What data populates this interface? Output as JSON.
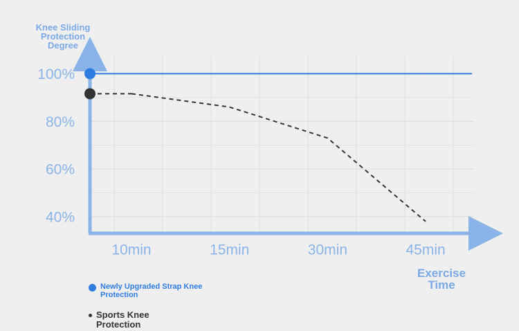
{
  "chart_data": {
    "type": "line",
    "y_label": "Knee Sliding Protection Degree",
    "x_label": "Exercise Time",
    "categories": [
      "10min",
      "15min",
      "30min",
      "45min"
    ],
    "series": [
      {
        "name": "Newly Upgraded Strap Knee Protection",
        "color": "#2f7de1",
        "dash": false,
        "values": [
          100,
          100,
          100,
          100
        ]
      },
      {
        "name": "Sports Knee Protection",
        "color": "#333333",
        "dash": true,
        "values": [
          91.6,
          86,
          73,
          38
        ]
      }
    ],
    "ylim": [
      33,
      110
    ],
    "yticks": [
      {
        "value": 40,
        "label": "40%"
      },
      {
        "value": 60,
        "label": "60%"
      },
      {
        "value": 80,
        "label": "80%"
      },
      {
        "value": 100,
        "label": "100%"
      }
    ],
    "grid": true
  }
}
